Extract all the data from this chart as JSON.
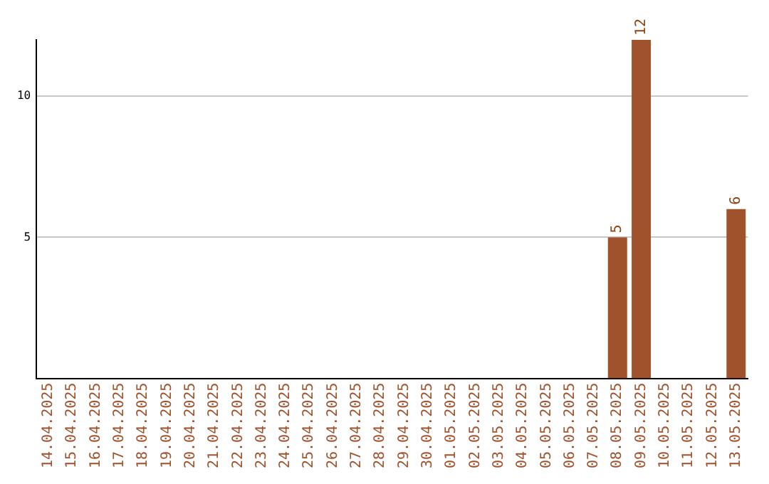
{
  "chart_data": {
    "type": "bar",
    "categories": [
      "14.04.2025",
      "15.04.2025",
      "16.04.2025",
      "17.04.2025",
      "18.04.2025",
      "19.04.2025",
      "20.04.2025",
      "21.04.2025",
      "22.04.2025",
      "23.04.2025",
      "24.04.2025",
      "25.04.2025",
      "26.04.2025",
      "27.04.2025",
      "28.04.2025",
      "29.04.2025",
      "30.04.2025",
      "01.05.2025",
      "02.05.2025",
      "03.05.2025",
      "04.05.2025",
      "05.05.2025",
      "06.05.2025",
      "07.05.2025",
      "08.05.2025",
      "09.05.2025",
      "10.05.2025",
      "11.05.2025",
      "12.05.2025",
      "13.05.2025"
    ],
    "values": [
      null,
      null,
      null,
      null,
      null,
      null,
      null,
      null,
      null,
      null,
      null,
      null,
      null,
      null,
      null,
      null,
      null,
      null,
      null,
      null,
      null,
      null,
      null,
      null,
      5,
      12,
      null,
      null,
      null,
      6
    ],
    "color": "#a0522d",
    "ylim": [
      0,
      12
    ],
    "yticks": [
      5,
      10
    ],
    "grid": "y",
    "data_labels": true,
    "legend": false
  }
}
